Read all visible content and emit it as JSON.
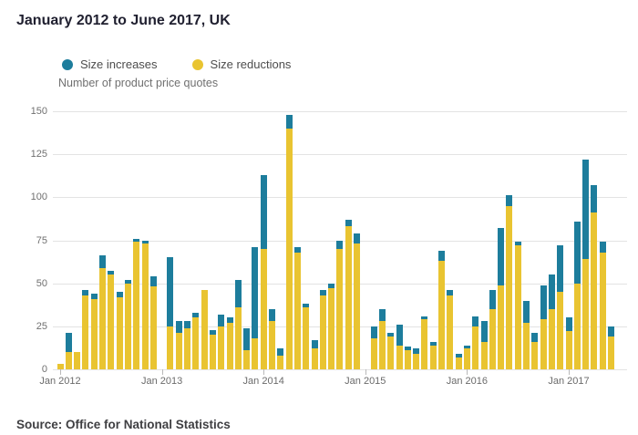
{
  "title": "January 2012 to June 2017, UK",
  "legend": [
    {
      "label": "Size increases",
      "color": "#1d7d9c"
    },
    {
      "label": "Size reductions",
      "color": "#e9c431"
    }
  ],
  "axis_label": "Number of product price quotes",
  "source": "Source: Office for National Statistics",
  "chart_data": {
    "type": "bar",
    "stacked": true,
    "title": "January 2012 to June 2017, UK",
    "ylabel": "Number of product price quotes",
    "xlabel": "",
    "ylim": [
      0,
      150
    ],
    "y_ticks": [
      0,
      25,
      50,
      75,
      100,
      125,
      150
    ],
    "grid": true,
    "legend_position": "top",
    "categories": [
      "Jan 2012",
      "Feb 2012",
      "Mar 2012",
      "Apr 2012",
      "May 2012",
      "Jun 2012",
      "Jul 2012",
      "Aug 2012",
      "Sep 2012",
      "Oct 2012",
      "Nov 2012",
      "Dec 2012",
      "Jan 2013",
      "Feb 2013",
      "Mar 2013",
      "Apr 2013",
      "May 2013",
      "Jun 2013",
      "Jul 2013",
      "Aug 2013",
      "Sep 2013",
      "Oct 2013",
      "Nov 2013",
      "Dec 2013",
      "Jan 2014",
      "Feb 2014",
      "Mar 2014",
      "Apr 2014",
      "May 2014",
      "Jun 2014",
      "Jul 2014",
      "Aug 2014",
      "Sep 2014",
      "Oct 2014",
      "Nov 2014",
      "Dec 2014",
      "Jan 2015",
      "Feb 2015",
      "Mar 2015",
      "Apr 2015",
      "May 2015",
      "Jun 2015",
      "Jul 2015",
      "Aug 2015",
      "Sep 2015",
      "Oct 2015",
      "Nov 2015",
      "Dec 2015",
      "Jan 2016",
      "Feb 2016",
      "Mar 2016",
      "Apr 2016",
      "May 2016",
      "Jun 2016",
      "Jul 2016",
      "Aug 2016",
      "Sep 2016",
      "Oct 2016",
      "Nov 2016",
      "Dec 2016",
      "Jan 2017",
      "Feb 2017",
      "Mar 2017",
      "Apr 2017",
      "May 2017",
      "Jun 2017"
    ],
    "series": [
      {
        "name": "Size reductions",
        "color": "#e9c431",
        "values": [
          3,
          10,
          10,
          43,
          41,
          59,
          55,
          42,
          50,
          74,
          73,
          48,
          0,
          25,
          21,
          24,
          30,
          46,
          20,
          25,
          27,
          36,
          11,
          18,
          70,
          28,
          8,
          140,
          68,
          36,
          12,
          43,
          47,
          70,
          83,
          73,
          0,
          18,
          28,
          19,
          14,
          11,
          9,
          29,
          14,
          63,
          43,
          7,
          12,
          25,
          16,
          35,
          49,
          95,
          72,
          27,
          16,
          29,
          35,
          45,
          22,
          50,
          64,
          91,
          68,
          19
        ]
      },
      {
        "name": "Size increases",
        "color": "#1d7d9c",
        "values": [
          0,
          11,
          0,
          3,
          3,
          7,
          2,
          3,
          2,
          2,
          2,
          6,
          0,
          40,
          7,
          4,
          3,
          0,
          3,
          7,
          3,
          16,
          13,
          53,
          43,
          7,
          4,
          8,
          3,
          2,
          5,
          3,
          3,
          5,
          4,
          6,
          0,
          7,
          7,
          2,
          12,
          2,
          3,
          2,
          2,
          6,
          3,
          2,
          2,
          6,
          12,
          11,
          33,
          6,
          2,
          13,
          5,
          20,
          20,
          27,
          8,
          36,
          58,
          16,
          6,
          6
        ]
      }
    ],
    "x_tick_indices": [
      0,
      12,
      24,
      36,
      48,
      60
    ],
    "x_tick_labels": [
      "Jan 2012",
      "Jan 2013",
      "Jan 2014",
      "Jan 2015",
      "Jan 2016",
      "Jan 2017"
    ]
  }
}
